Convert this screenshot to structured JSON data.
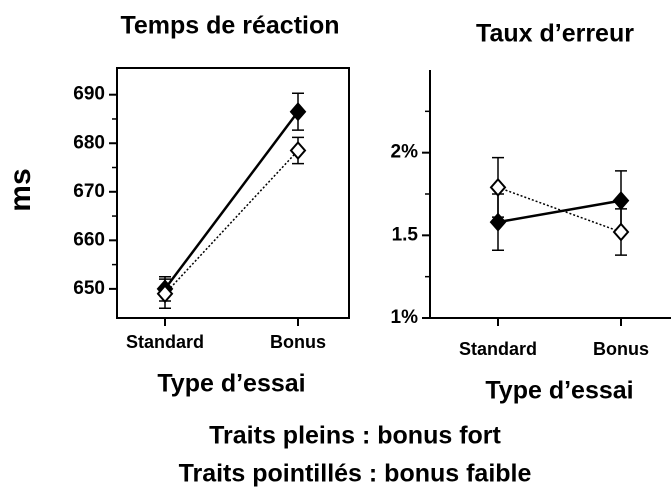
{
  "chart_data": [
    {
      "type": "line",
      "title": "Temps de réaction",
      "ylabel": "ms",
      "xlabel": "Type d’essai",
      "categories": [
        "Standard",
        "Bonus"
      ],
      "ylim": [
        644,
        695.5
      ],
      "yticks": [
        650,
        660,
        670,
        680,
        690
      ],
      "yminor": [
        655,
        665,
        675,
        685
      ],
      "frame": "box",
      "series": [
        {
          "color": "#000000",
          "line_style": "solid",
          "marker": "filled",
          "values": [
            650,
            686.5
          ],
          "errors": [
            2.5,
            3.8
          ]
        },
        {
          "color": "#000000",
          "line_style": "dotted",
          "marker": "open",
          "values": [
            649,
            678.5
          ],
          "errors": [
            3,
            2.7
          ]
        }
      ]
    },
    {
      "type": "line",
      "title": "Taux d’erreur",
      "xlabel": "Type d’essai",
      "categories": [
        "Standard",
        "Bonus"
      ],
      "ylim": [
        1,
        2.5
      ],
      "yticks": [
        {
          "value": 1,
          "label": "1%"
        },
        {
          "value": 1.5,
          "label": "1.5"
        },
        {
          "value": 2,
          "label": "2%"
        }
      ],
      "yminor": [
        1.25,
        1.75,
        2.25
      ],
      "frame": "left-bottom",
      "series": [
        {
          "color": "#000000",
          "line_style": "solid",
          "marker": "filled",
          "values": [
            1.58,
            1.71
          ],
          "errors": [
            0.17,
            0.18
          ]
        },
        {
          "color": "#000000",
          "line_style": "dotted",
          "marker": "open",
          "values": [
            1.79,
            1.52
          ],
          "errors": [
            0.18,
            0.14
          ]
        }
      ]
    }
  ],
  "captions": [
    "Traits pleins : bonus fort",
    "Traits pointillés : bonus faible"
  ]
}
